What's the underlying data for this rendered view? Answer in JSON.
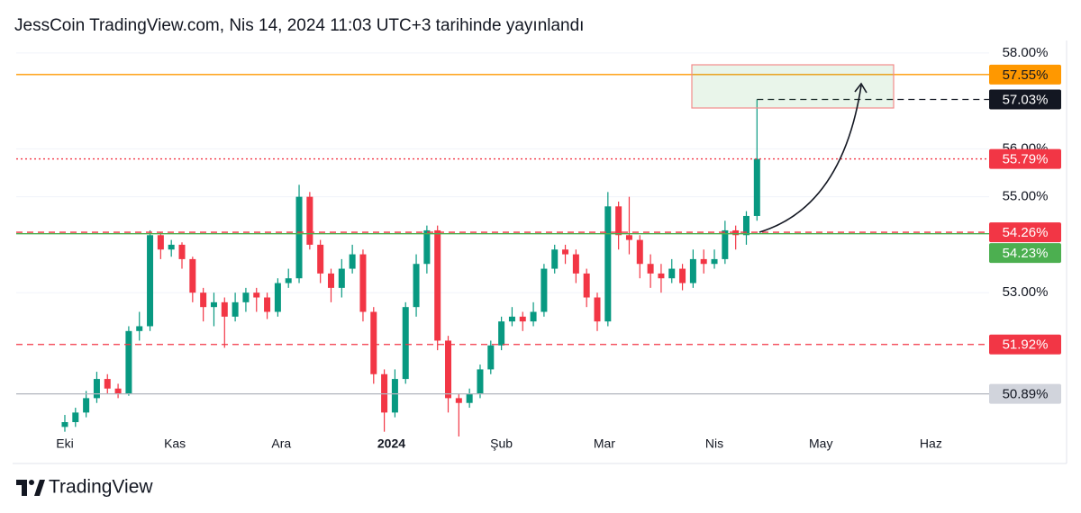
{
  "chart_data": {
    "type": "candlestick",
    "title": "JessCoin TradingView.com, Nis 14, 2024 11:03 UTC+3 tarihinde yayınlandı",
    "x": [
      0,
      3,
      6,
      9,
      12,
      15,
      18,
      21,
      24,
      27,
      30,
      33,
      36,
      39,
      42,
      45,
      48,
      51,
      54,
      57,
      60,
      63,
      66,
      69,
      72,
      75,
      78,
      81,
      84,
      87,
      90,
      93,
      96,
      99,
      102,
      105,
      108,
      111,
      114,
      117,
      120,
      123,
      126,
      129,
      132,
      135,
      138,
      141,
      144,
      147,
      150,
      153,
      156,
      159,
      162,
      165,
      168,
      171,
      174,
      177,
      180,
      183,
      186,
      189,
      192,
      195
    ],
    "open": [
      50.2,
      50.3,
      50.5,
      50.8,
      51.2,
      51.0,
      50.9,
      52.2,
      52.3,
      54.2,
      53.9,
      54.0,
      53.7,
      53.0,
      52.7,
      52.8,
      52.5,
      52.8,
      53.0,
      52.9,
      52.6,
      53.2,
      53.3,
      55.0,
      54.0,
      53.4,
      53.1,
      53.5,
      53.8,
      52.6,
      51.3,
      50.5,
      51.2,
      52.7,
      53.6,
      54.3,
      52.0,
      50.8,
      50.7,
      50.9,
      51.4,
      51.9,
      52.4,
      52.5,
      52.4,
      52.6,
      53.5,
      53.9,
      53.8,
      53.4,
      52.9,
      52.4,
      54.8,
      54.2,
      54.1,
      53.6,
      53.4,
      53.3,
      53.5,
      53.2,
      53.7,
      53.6,
      53.7,
      54.3,
      54.2,
      54.6
    ],
    "high": [
      50.45,
      50.6,
      50.95,
      51.35,
      51.3,
      51.1,
      52.3,
      52.6,
      54.3,
      54.25,
      54.1,
      54.05,
      53.75,
      53.1,
      53.0,
      52.9,
      53.0,
      53.1,
      53.1,
      53.0,
      53.3,
      53.5,
      55.25,
      55.1,
      54.1,
      53.5,
      53.7,
      54.0,
      53.9,
      52.7,
      51.4,
      51.4,
      52.8,
      53.8,
      54.4,
      54.4,
      52.1,
      50.9,
      51.0,
      51.5,
      52.0,
      52.5,
      52.7,
      52.6,
      52.8,
      53.6,
      54.0,
      54.0,
      53.9,
      53.5,
      53.0,
      55.1,
      54.9,
      55.0,
      54.2,
      53.8,
      53.6,
      53.7,
      53.6,
      53.9,
      53.9,
      53.9,
      54.5,
      54.4,
      54.7,
      57.03
    ],
    "low": [
      50.1,
      50.2,
      50.4,
      50.7,
      50.9,
      50.8,
      50.85,
      52.0,
      52.2,
      53.7,
      53.75,
      53.5,
      52.8,
      52.4,
      52.3,
      51.85,
      52.4,
      52.6,
      52.6,
      52.45,
      52.5,
      53.1,
      53.2,
      53.9,
      53.2,
      52.8,
      52.9,
      53.4,
      52.4,
      51.1,
      50.1,
      50.4,
      51.1,
      52.5,
      53.4,
      51.8,
      50.5,
      50.0,
      50.6,
      50.8,
      51.3,
      51.8,
      52.3,
      52.2,
      52.3,
      52.5,
      53.4,
      53.6,
      53.2,
      52.7,
      52.2,
      52.3,
      53.9,
      53.8,
      53.3,
      53.1,
      53.0,
      53.2,
      53.05,
      53.1,
      53.4,
      53.5,
      53.6,
      53.9,
      54.0,
      54.5
    ],
    "close": [
      50.3,
      50.5,
      50.8,
      51.2,
      51.0,
      50.9,
      52.2,
      52.3,
      54.2,
      53.9,
      54.0,
      53.7,
      53.0,
      52.7,
      52.8,
      52.5,
      52.8,
      53.0,
      52.9,
      52.6,
      53.2,
      53.3,
      55.0,
      54.0,
      53.4,
      53.1,
      53.5,
      53.8,
      52.6,
      51.3,
      50.5,
      51.2,
      52.7,
      53.6,
      54.3,
      52.0,
      50.8,
      50.7,
      50.9,
      51.4,
      51.9,
      52.4,
      52.5,
      52.4,
      52.6,
      53.5,
      53.9,
      53.8,
      53.4,
      52.9,
      52.4,
      54.8,
      54.2,
      54.1,
      53.6,
      53.4,
      53.3,
      53.5,
      53.2,
      53.7,
      53.6,
      53.7,
      54.3,
      54.2,
      54.6,
      55.79
    ],
    "up_color": "#089981",
    "down_color": "#f23645",
    "xlim": [
      -13.7,
      260.4
    ],
    "xticks": [
      {
        "value": 0,
        "label": "Eki"
      },
      {
        "value": 31,
        "label": "Kas"
      },
      {
        "value": 61,
        "label": "Ara"
      },
      {
        "value": 92,
        "label": "2024"
      },
      {
        "value": 123,
        "label": "Şub"
      },
      {
        "value": 152,
        "label": "Mar"
      },
      {
        "value": 183,
        "label": "Nis"
      },
      {
        "value": 213,
        "label": "May"
      },
      {
        "value": 244,
        "label": "Haz"
      }
    ],
    "ylim": [
      50.0,
      58.26
    ],
    "yticks": [
      {
        "value": 58,
        "label": "58.00%"
      },
      {
        "value": 56,
        "label": "56.00%"
      },
      {
        "value": 55,
        "label": "55.00%"
      },
      {
        "value": 53,
        "label": "53.00%"
      }
    ],
    "levels": [
      {
        "value": 57.55,
        "label": "57.55%",
        "color": "#ff9800",
        "text_color": "#131722",
        "style": "solid"
      },
      {
        "value": 57.03,
        "label": "57.03%",
        "color": "#131722",
        "text_color": "#ffffff",
        "style": "dashed"
      },
      {
        "value": 55.79,
        "label": "55.79%",
        "color": "#f23645",
        "text_color": "#ffffff",
        "style": "dotted"
      },
      {
        "value": 54.26,
        "label": "54.26%",
        "color": "#f23645",
        "text_color": "#ffffff",
        "style": "dashed"
      },
      {
        "value": 54.23,
        "label": "54.23%",
        "color": "#4caf50",
        "text_color": "#ffffff",
        "style": "solid"
      },
      {
        "value": 51.92,
        "label": "51.92%",
        "color": "#f23645",
        "text_color": "#ffffff",
        "style": "dashed"
      },
      {
        "value": 50.89,
        "label": "50.89%",
        "color": "#d1d4dc",
        "text_color": "#131722",
        "style": "solid"
      }
    ]
  },
  "footer": {
    "brand": "TradingView"
  }
}
